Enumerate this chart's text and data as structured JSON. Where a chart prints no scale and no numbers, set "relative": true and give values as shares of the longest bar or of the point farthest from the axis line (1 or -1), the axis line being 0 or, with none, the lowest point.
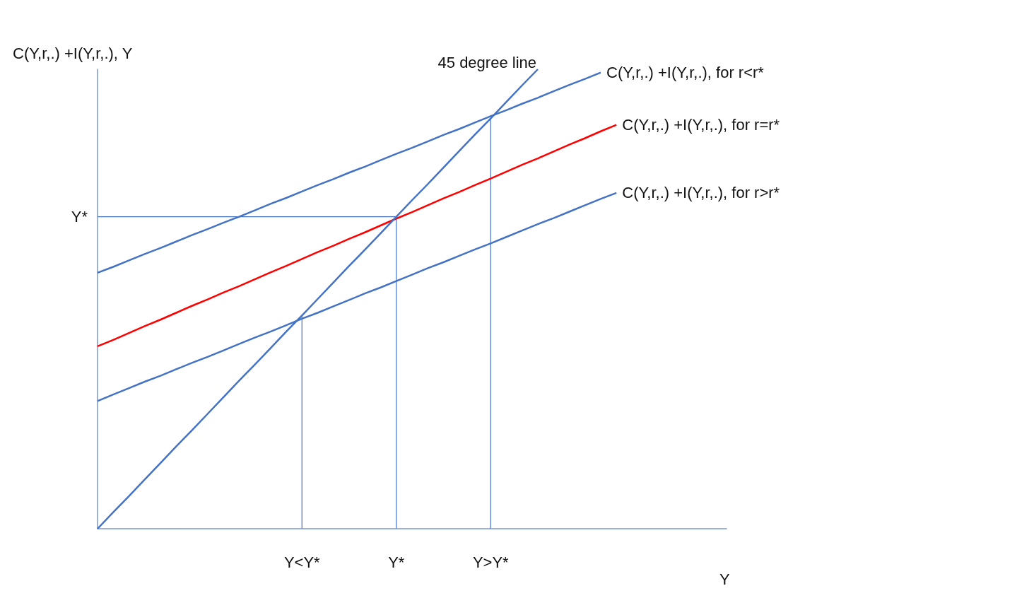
{
  "chart_data": {
    "type": "line",
    "relative": true,
    "xlabel": "Y",
    "ylabel": "C(Y,r,.) +I(Y,r,.), Y",
    "categories": [
      null,
      null,
      null,
      null,
      null,
      null,
      null,
      null,
      null,
      null,
      null,
      null,
      null,
      "Y<Y*",
      null,
      null,
      null,
      null,
      null,
      "Y*",
      null,
      null,
      null,
      null,
      null,
      "Y>Y*",
      null,
      null,
      null,
      null,
      null,
      null,
      null,
      null,
      null,
      null,
      null,
      null,
      null,
      null,
      null
    ],
    "tick_labels": "x",
    "legend": false,
    "marker": "none",
    "line_style": "solid",
    "series": [
      {
        "name": "C(Y,r,.) +I(Y,r,.), for r<r*",
        "color": "#4472c4",
        "values": [
          0.557,
          0.57,
          0.584,
          0.598,
          0.611,
          0.625,
          0.639,
          0.652,
          0.666,
          0.679,
          0.693,
          0.707,
          0.72,
          0.734,
          0.748,
          0.761,
          0.775,
          0.788,
          0.802,
          0.816,
          0.829,
          0.843,
          0.857,
          0.87,
          0.884,
          0.898,
          0.911,
          0.925,
          0.938,
          0.952,
          0.966,
          0.979,
          0.993,
          null,
          null,
          null,
          null,
          null,
          null,
          null,
          null
        ]
      },
      {
        "name": "C(Y,r,.) +I(Y,r,.), for r=r*",
        "color": "#ff0000",
        "values": [
          0.397,
          0.411,
          0.426,
          0.441,
          0.455,
          0.47,
          0.485,
          0.499,
          0.514,
          0.528,
          0.543,
          0.558,
          0.572,
          0.587,
          0.602,
          0.616,
          0.631,
          0.645,
          0.66,
          0.675,
          0.689,
          0.704,
          0.719,
          0.733,
          0.748,
          0.762,
          0.777,
          0.792,
          0.806,
          0.821,
          0.836,
          0.85,
          0.865,
          0.879,
          null,
          null,
          null,
          null,
          null,
          null,
          null
        ]
      },
      {
        "name": "C(Y,r,.) +I(Y,r,.), for r>r*",
        "color": "#4472c4",
        "values": [
          0.278,
          0.292,
          0.306,
          0.32,
          0.333,
          0.347,
          0.361,
          0.374,
          0.388,
          0.402,
          0.416,
          0.429,
          0.443,
          0.457,
          0.47,
          0.484,
          0.498,
          0.512,
          0.525,
          0.539,
          0.553,
          0.567,
          0.58,
          0.594,
          0.608,
          0.621,
          0.635,
          0.649,
          0.663,
          0.676,
          0.69,
          0.704,
          0.718,
          0.731,
          null,
          null,
          null,
          null,
          null,
          null,
          null
        ]
      },
      {
        "name": "45 degree line",
        "color": "#4472c4",
        "values": [
          0,
          0.036,
          0.071,
          0.107,
          0.143,
          0.179,
          0.214,
          0.25,
          0.286,
          0.322,
          0.357,
          0.393,
          0.429,
          0.464,
          0.5,
          0.536,
          0.572,
          0.607,
          0.643,
          0.679,
          0.715,
          0.75,
          0.786,
          0.822,
          0.858,
          0.893,
          0.929,
          0.965,
          1,
          null,
          null,
          null,
          null,
          null,
          null,
          null,
          null,
          null,
          null,
          null,
          null
        ]
      }
    ],
    "ref_lines": [
      {
        "axis": "x",
        "value": "Y<Y*",
        "color": "#4472c4"
      },
      {
        "axis": "x",
        "value": "Y*",
        "color": "#4472c4"
      },
      {
        "axis": "x",
        "value": "Y>Y*",
        "color": "#4472c4"
      },
      {
        "axis": "y",
        "value": 0.679,
        "label": "Y*",
        "color": "#4472c4"
      }
    ]
  }
}
